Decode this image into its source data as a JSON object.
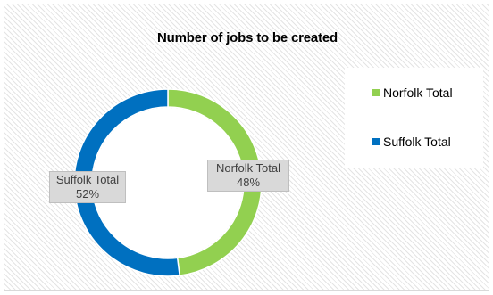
{
  "chart_data": {
    "type": "pie",
    "title": "Number of jobs to be created",
    "categories": [
      "Norfolk Total",
      "Suffolk Total"
    ],
    "values": [
      48,
      52
    ],
    "colors": [
      "#92d050",
      "#0070c0"
    ],
    "data_labels": [
      {
        "category": "Norfolk Total",
        "value_text": "48%"
      },
      {
        "category": "Suffolk Total",
        "value_text": "52%"
      }
    ],
    "legend": {
      "position": "right",
      "entries": [
        "Norfolk Total",
        "Suffolk Total"
      ]
    },
    "style": "doughnut"
  }
}
